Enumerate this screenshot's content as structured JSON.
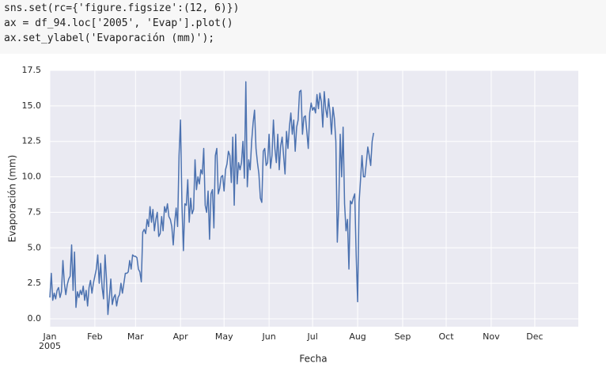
{
  "code": {
    "lines": [
      "sns.set(rc={'figure.figsize':(12, 6)})",
      "ax = df_94.loc['2005', 'Evap'].plot()",
      "ax.set_ylabel('Evaporación (mm)');"
    ]
  },
  "chart_data": {
    "type": "line",
    "xlabel": "Fecha",
    "ylabel": "Evaporación (mm)",
    "x_year_label": "2005",
    "color": "#4c72b0",
    "grid": true,
    "xlim": [
      0,
      364
    ],
    "ylim": [
      -0.56,
      17.5
    ],
    "xticks": [
      {
        "value": 0,
        "label": "Jan"
      },
      {
        "value": 31,
        "label": "Feb"
      },
      {
        "value": 59,
        "label": "Mar"
      },
      {
        "value": 90,
        "label": "Apr"
      },
      {
        "value": 120,
        "label": "May"
      },
      {
        "value": 151,
        "label": "Jun"
      },
      {
        "value": 181,
        "label": "Jul"
      },
      {
        "value": 212,
        "label": "Aug"
      },
      {
        "value": 243,
        "label": "Sep"
      },
      {
        "value": 273,
        "label": "Oct"
      },
      {
        "value": 304,
        "label": "Nov"
      },
      {
        "value": 334,
        "label": "Dec"
      }
    ],
    "yticks": [
      {
        "value": 0,
        "label": "0.0"
      },
      2.5,
      {
        "value": 5,
        "label": "5.0"
      },
      7.5,
      {
        "value": 10,
        "label": "10.0"
      },
      12.5,
      {
        "value": 15,
        "label": "15.0"
      },
      17.5
    ],
    "x": [
      0,
      1,
      2,
      3,
      4,
      5,
      6,
      7,
      8,
      9,
      10,
      11,
      12,
      13,
      14,
      15,
      16,
      17,
      18,
      19,
      20,
      21,
      22,
      23,
      24,
      25,
      26,
      27,
      28,
      29,
      30,
      31,
      32,
      33,
      34,
      35,
      36,
      37,
      38,
      39,
      40,
      41,
      42,
      43,
      44,
      45,
      46,
      47,
      48,
      49,
      50,
      51,
      52,
      53,
      54,
      55,
      56,
      57,
      58,
      59,
      60,
      61,
      62,
      63,
      64,
      65,
      66,
      67,
      68,
      69,
      70,
      71,
      72,
      73,
      74,
      75,
      76,
      77,
      78,
      79,
      80,
      81,
      82,
      83,
      84,
      85,
      86,
      87,
      88,
      89,
      90,
      91,
      92,
      93,
      94,
      95,
      96,
      97,
      98,
      99,
      100,
      101,
      102,
      103,
      104,
      105,
      106,
      107,
      108,
      109,
      110,
      111,
      112,
      113,
      114,
      115,
      116,
      117,
      118,
      119,
      120,
      121,
      122,
      123,
      124,
      125,
      126,
      127,
      128,
      129,
      130,
      131,
      132,
      133,
      134,
      135,
      136,
      137,
      138,
      139,
      140,
      141,
      142,
      143,
      144,
      145,
      146,
      147,
      148,
      149,
      150,
      151,
      152,
      153,
      154,
      155,
      156,
      157,
      158,
      159,
      160,
      161,
      162,
      163,
      164,
      165,
      166,
      167,
      168,
      169,
      170,
      171,
      172,
      173,
      174,
      175,
      176,
      177,
      178,
      179,
      180,
      181,
      182,
      183,
      184,
      185,
      186,
      187,
      188,
      189,
      190,
      191,
      192,
      193,
      194,
      195,
      196,
      197,
      198,
      199,
      200,
      201,
      202,
      203,
      204,
      205,
      206,
      207,
      208,
      209,
      210,
      211,
      212,
      213,
      214,
      215,
      216,
      217,
      218,
      219,
      220,
      221,
      222,
      223
    ],
    "values": [
      1.5,
      3.2,
      1.3,
      1.8,
      1.4,
      2.0,
      2.2,
      1.5,
      1.9,
      4.1,
      2.5,
      1.7,
      2.4,
      2.8,
      3.0,
      5.2,
      2.0,
      4.7,
      0.8,
      1.9,
      1.5,
      2.0,
      1.7,
      2.3,
      1.3,
      2.0,
      0.9,
      2.2,
      2.7,
      1.8,
      2.5,
      3.0,
      3.5,
      4.5,
      2.5,
      3.9,
      2.2,
      1.4,
      4.5,
      2.8,
      0.3,
      1.5,
      2.8,
      1.0,
      1.5,
      1.7,
      0.9,
      1.5,
      1.7,
      2.5,
      1.8,
      2.5,
      3.2,
      3.2,
      3.3,
      4.1,
      3.5,
      4.5,
      4.4,
      4.4,
      4.3,
      3.5,
      3.3,
      2.6,
      6.1,
      6.3,
      6.0,
      7.0,
      6.5,
      7.9,
      6.8,
      7.7,
      6.2,
      7.0,
      7.5,
      5.8,
      6.0,
      7.2,
      6.2,
      7.9,
      7.5,
      8.1,
      7.2,
      7.0,
      6.5,
      5.2,
      6.8,
      7.8,
      6.5,
      11.5,
      14.0,
      8.0,
      4.8,
      8.1,
      8.0,
      9.8,
      6.8,
      8.5,
      7.4,
      7.7,
      11.2,
      9.1,
      10.0,
      9.5,
      10.5,
      10.2,
      12.0,
      8.0,
      7.5,
      9.0,
      5.6,
      8.8,
      9.1,
      6.4,
      11.5,
      12.0,
      8.8,
      9.2,
      10.0,
      10.1,
      9.0,
      10.5,
      10.9,
      11.8,
      11.5,
      9.6,
      12.8,
      8.0,
      13.0,
      9.5,
      11.0,
      10.5,
      11.0,
      12.5,
      9.9,
      16.7,
      9.3,
      11.2,
      10.5,
      12.5,
      13.8,
      14.7,
      12.0,
      11.0,
      10.2,
      8.5,
      8.2,
      11.8,
      12.0,
      10.8,
      11.0,
      13.0,
      10.6,
      11.5,
      14.0,
      12.0,
      11.0,
      13.0,
      10.5,
      12.2,
      12.8,
      11.5,
      10.2,
      13.2,
      12.0,
      13.5,
      14.5,
      13.0,
      14.0,
      11.8,
      13.5,
      14.0,
      16.0,
      16.1,
      13.0,
      14.2,
      14.3,
      13.2,
      12.0,
      14.5,
      15.2,
      14.7,
      14.9,
      14.5,
      15.8,
      14.8,
      15.9,
      15.3,
      13.5,
      16.0,
      14.8,
      14.2,
      15.5,
      14.5,
      13.0,
      14.9,
      14.1,
      12.5,
      5.4,
      8.0,
      13.0,
      10.0,
      13.5,
      8.1,
      6.2,
      7.0,
      3.5,
      8.3,
      8.1,
      8.5,
      8.8,
      4.5,
      1.2,
      8.2,
      9.8,
      11.5,
      10.0,
      10.0,
      11.0,
      12.1,
      11.5,
      10.8,
      12.5,
      13.1
    ]
  }
}
